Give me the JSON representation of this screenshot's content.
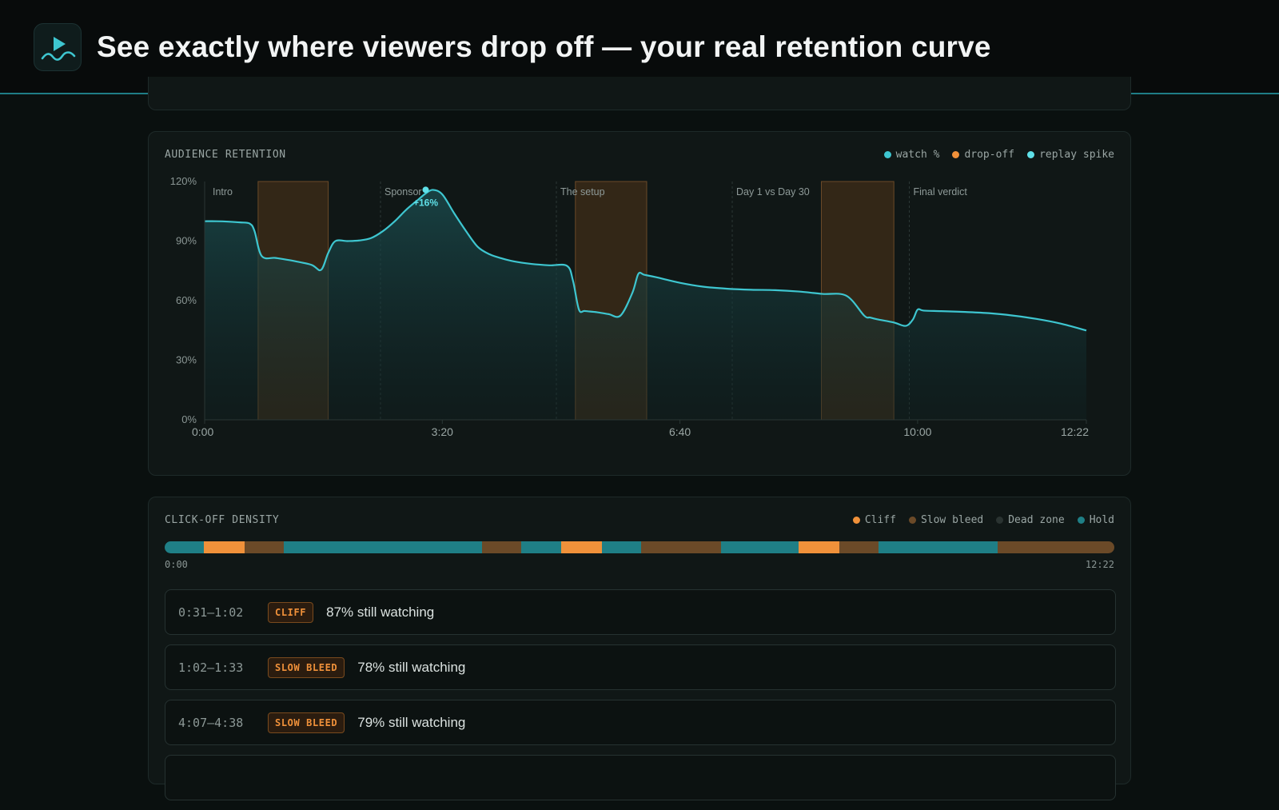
{
  "header": {
    "title": "See exactly where viewers drop off — your real retention curve",
    "logo_icon": "play-wave-icon"
  },
  "colors": {
    "accent": "#3ec6d0",
    "dropoff": "#f0913a",
    "slow_bleed": "#6b4a28",
    "dead_zone": "#2a3331",
    "hold": "#1f7f86"
  },
  "retention_panel": {
    "title": "AUDIENCE RETENTION",
    "legend": [
      {
        "label": "watch %",
        "color": "#3ec6d0"
      },
      {
        "label": "drop-off",
        "color": "#f0913a"
      },
      {
        "label": "replay spike",
        "color": "#5fe0e8"
      }
    ]
  },
  "chart_data": {
    "type": "area",
    "title": "AUDIENCE RETENTION",
    "xlabel": "",
    "ylabel": "",
    "x_range_seconds": [
      0,
      742
    ],
    "ylim": [
      0,
      120
    ],
    "y_ticks": [
      "0%",
      "30%",
      "60%",
      "90%",
      "120%"
    ],
    "y_tick_values": [
      0,
      30,
      60,
      90,
      120
    ],
    "x_ticks": [
      "0:00",
      "3:20",
      "6:40",
      "10:00",
      "12:22"
    ],
    "x_tick_values": [
      0,
      200,
      400,
      600,
      742
    ],
    "series": [
      {
        "name": "watch %",
        "x": [
          0,
          10,
          20,
          30,
          38,
          42,
          48,
          60,
          75,
          90,
          98,
          104,
          110,
          120,
          130,
          140,
          150,
          160,
          170,
          180,
          186,
          192,
          200,
          210,
          220,
          230,
          240,
          250,
          260,
          275,
          290,
          305,
          310,
          315,
          320,
          330,
          340,
          350,
          360,
          365,
          370,
          380,
          400,
          420,
          440,
          460,
          480,
          500,
          520,
          540,
          555,
          560,
          566,
          580,
          590,
          596,
          600,
          605,
          620,
          640,
          660,
          680,
          700,
          720,
          742
        ],
        "y": [
          100,
          100,
          99.8,
          99.4,
          98.8,
          95,
          82.5,
          81.5,
          80,
          78,
          75.5,
          84,
          90,
          90,
          90.3,
          91.5,
          95,
          100,
          106,
          111,
          114,
          115.8,
          113.5,
          104,
          95,
          87,
          83.3,
          81.3,
          79.8,
          78.5,
          77.8,
          77.5,
          70,
          55.5,
          54.8,
          54.2,
          53.2,
          52.5,
          64,
          73.5,
          73,
          71.8,
          69,
          67,
          66,
          65.5,
          65.3,
          64.6,
          63.4,
          62.5,
          52.5,
          51.5,
          50.6,
          49,
          47.3,
          50.5,
          55.5,
          55,
          54.7,
          54.3,
          53.7,
          52.5,
          50.8,
          48.5,
          45
        ]
      }
    ],
    "dropoff_zones": [
      [
        45,
        104
      ],
      [
        312,
        372
      ],
      [
        519,
        580
      ]
    ],
    "chapters": [
      {
        "label": "Intro",
        "t": 0
      },
      {
        "label": "Sponsor",
        "t": 148
      },
      {
        "label": "The setup",
        "t": 296
      },
      {
        "label": "Day 1 vs Day 30",
        "t": 444
      },
      {
        "label": "Final verdict",
        "t": 593
      }
    ],
    "annotations": [
      {
        "label": "+16%",
        "x": 186,
        "y": 115.8,
        "type": "replay spike"
      }
    ],
    "grid": false,
    "legend_position": "top-right"
  },
  "density_panel": {
    "title": "CLICK-OFF DENSITY",
    "legend": [
      {
        "label": "Cliff",
        "color": "#f0913a"
      },
      {
        "label": "Slow bleed",
        "color": "#6b4a28"
      },
      {
        "label": "Dead zone",
        "color": "#2a3331"
      },
      {
        "label": "Hold",
        "color": "#1f7f86"
      }
    ],
    "start_label": "0:00",
    "end_label": "12:22",
    "segments": [
      {
        "kind": "hold",
        "share": 4.1
      },
      {
        "kind": "cliff",
        "share": 4.3
      },
      {
        "kind": "slow_bleed",
        "share": 4.1
      },
      {
        "kind": "hold",
        "share": 20.9
      },
      {
        "kind": "slow_bleed",
        "share": 4.1
      },
      {
        "kind": "hold",
        "share": 4.2
      },
      {
        "kind": "cliff",
        "share": 4.3
      },
      {
        "kind": "hold",
        "share": 4.1
      },
      {
        "kind": "slow_bleed",
        "share": 8.4
      },
      {
        "kind": "hold",
        "share": 8.2
      },
      {
        "kind": "cliff",
        "share": 4.3
      },
      {
        "kind": "slow_bleed",
        "share": 4.1
      },
      {
        "kind": "hold",
        "share": 12.5
      },
      {
        "kind": "slow_bleed",
        "share": 12.3
      }
    ],
    "rows": [
      {
        "time": "0:31–1:02",
        "badge": "CLIFF",
        "text": "87% still watching"
      },
      {
        "time": "1:02–1:33",
        "badge": "SLOW BLEED",
        "text": "78% still watching"
      },
      {
        "time": "4:07–4:38",
        "badge": "SLOW BLEED",
        "text": "79% still watching"
      }
    ]
  }
}
